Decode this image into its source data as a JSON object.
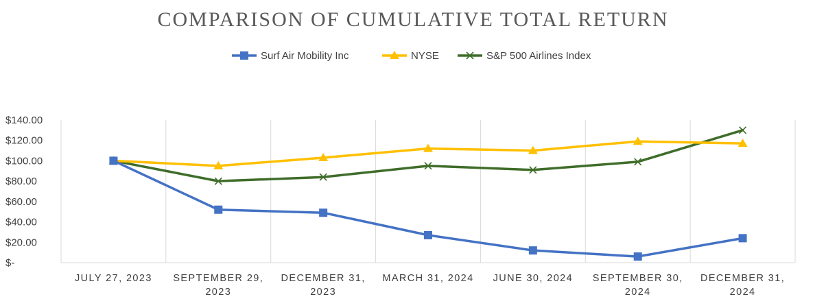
{
  "chart_data": {
    "type": "line",
    "title": "COMPARISON OF CUMULATIVE TOTAL RETURN",
    "categories": [
      [
        "JULY 27, 2023"
      ],
      [
        "SEPTEMBER 29,",
        "2023"
      ],
      [
        "DECEMBER 31,",
        "2023"
      ],
      [
        "MARCH 31, 2024"
      ],
      [
        "JUNE 30, 2024"
      ],
      [
        "SEPTEMBER 30,",
        "2024"
      ],
      [
        "DECEMBER 31,",
        "2024"
      ]
    ],
    "y_ticks": [
      "$-",
      "$20.00",
      "$40.00",
      "$60.00",
      "$80.00",
      "$100.00",
      "$120.00",
      "$140.00"
    ],
    "ylim": [
      0,
      140
    ],
    "grid": "vertical",
    "legend_position": "top",
    "series": [
      {
        "name": "Surf Air Mobility Inc",
        "color": "#4472C4",
        "marker": "square",
        "values": [
          100,
          52,
          49,
          27,
          12,
          6,
          24
        ]
      },
      {
        "name": "NYSE",
        "color": "#FFC000",
        "marker": "triangle",
        "values": [
          100,
          95,
          103,
          112,
          110,
          119,
          117
        ]
      },
      {
        "name": "S&P 500 Airlines Index",
        "color": "#3F6D2A",
        "marker": "x",
        "values": [
          100,
          80,
          84,
          95,
          91,
          99,
          130
        ]
      }
    ]
  }
}
